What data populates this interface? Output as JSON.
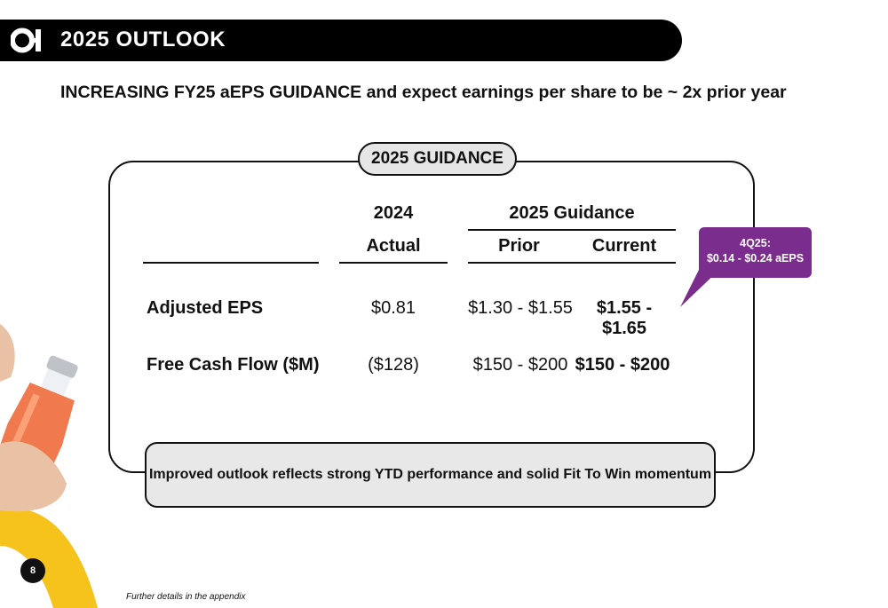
{
  "header": {
    "logo_text": "O-I",
    "title": "2025 OUTLOOK"
  },
  "headline": {
    "bold": "INCREASING FY25 aEPS GUIDANCE",
    "rest": " and expect earnings per share to be ~ 2x prior year"
  },
  "guidance": {
    "box_label": "2025 GUIDANCE",
    "columns": {
      "year_2024": "2024",
      "actual": "Actual",
      "guidance_2025": "2025 Guidance",
      "prior": "Prior",
      "current": "Current"
    },
    "rows": [
      {
        "label": "Adjusted EPS",
        "actual": "$0.81",
        "prior": "$1.30 - $1.55",
        "current": "$1.55 - $1.65"
      },
      {
        "label": "Free Cash Flow ($M)",
        "actual": "($128)",
        "prior": "$150 - $200",
        "current": "$150 - $200"
      }
    ]
  },
  "callout": {
    "line1": "4Q25:",
    "line2": "$0.14 - $0.24 aEPS",
    "color": "#7b2d8e"
  },
  "note": "Improved outlook reflects strong YTD performance and solid Fit To Win momentum",
  "footer": {
    "page_number": "8",
    "footnote": "Further details in the appendix"
  }
}
